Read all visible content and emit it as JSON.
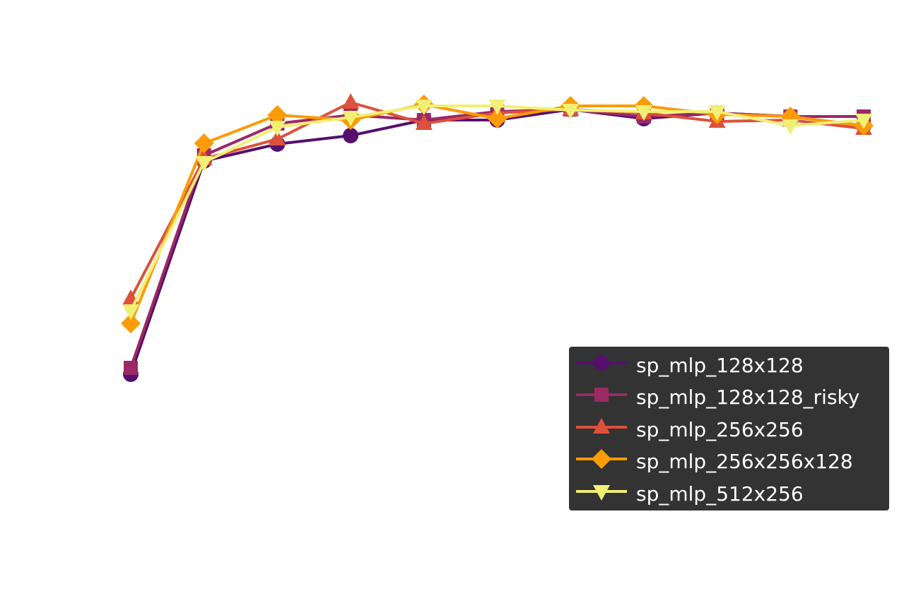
{
  "chart_data": {
    "type": "line",
    "title": "",
    "xlabel": "",
    "ylabel": "",
    "axes_visible": false,
    "grid": false,
    "legend_placement": "lower-right",
    "x": [
      1,
      2,
      3,
      4,
      5,
      6,
      7,
      8,
      9,
      10,
      11
    ],
    "ylim": [
      -73.5,
      140
    ],
    "series": [
      {
        "name": "sp_mlp_128x128",
        "color": "#560f6d",
        "marker": "circle",
        "values": [
          7.5,
          83,
          89,
          92,
          97.5,
          97.5,
          101.25,
          98,
          100,
          98.75,
          95.5
        ]
      },
      {
        "name": "sp_mlp_128x128_risky",
        "color": "#9b2964",
        "marker": "square",
        "values": [
          9.75,
          85,
          96.25,
          99.25,
          97.5,
          100.5,
          101.25,
          98.75,
          100,
          98.75,
          98.75
        ]
      },
      {
        "name": "sp_mlp_256x256",
        "color": "#dd513a",
        "marker": "triangle-up",
        "values": [
          34.25,
          83.75,
          90.75,
          103.75,
          96.25,
          100,
          101.25,
          100,
          97,
          97.5,
          94.5
        ]
      },
      {
        "name": "sp_mlp_256x256x128",
        "color": "#fb9b06",
        "marker": "diamond",
        "values": [
          25.5,
          89.25,
          99.25,
          97.5,
          103,
          98,
          102.5,
          102.5,
          99.5,
          98.75,
          95.5
        ]
      },
      {
        "name": "sp_mlp_512x256",
        "color": "#f1ef75",
        "marker": "triangle-down",
        "values": [
          30,
          82.5,
          95,
          98.5,
          102.5,
          102.5,
          101,
          100.5,
          100.5,
          95.5,
          97.5
        ]
      }
    ]
  }
}
